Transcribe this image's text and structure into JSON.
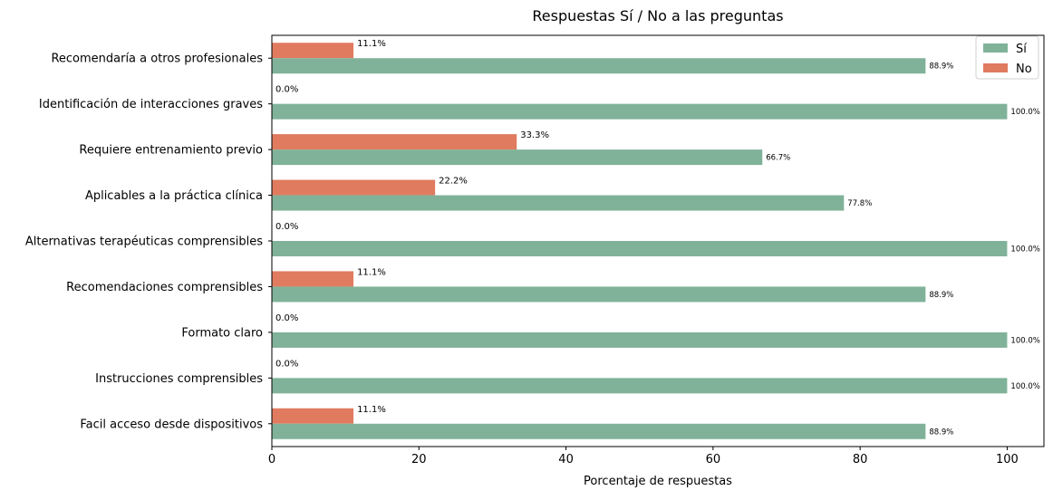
{
  "chart_data": {
    "type": "bar",
    "orientation": "horizontal",
    "title": "Respuestas Sí / No a las preguntas",
    "xlabel": "Porcentaje de respuestas",
    "ylabel": "",
    "xlim": [
      0,
      105
    ],
    "xticks": [
      0,
      20,
      40,
      60,
      80,
      100
    ],
    "grid": false,
    "legend_position": "top-right",
    "categories": [
      "Recomendaría a otros profesionales",
      "Identificación de interacciones graves",
      "Requiere entrenamiento previo",
      "Aplicables a la práctica clínica",
      "Alternativas terapéuticas comprensibles",
      "Recomendaciones comprensibles",
      "Formato claro",
      "Instrucciones comprensibles",
      "Facil acceso desde dispositivos"
    ],
    "series": [
      {
        "name": "Sí",
        "color": "#80b299",
        "values": [
          88.9,
          100.0,
          66.7,
          77.8,
          100.0,
          88.9,
          100.0,
          100.0,
          88.9
        ],
        "labels": [
          "88.9%",
          "100.0%",
          "66.7%",
          "77.8%",
          "100.0%",
          "88.9%",
          "100.0%",
          "100.0%",
          "88.9%"
        ]
      },
      {
        "name": "No",
        "color": "#e07b5f",
        "values": [
          11.1,
          0.0,
          33.3,
          22.2,
          0.0,
          11.1,
          0.0,
          0.0,
          11.1
        ],
        "labels": [
          "11.1%",
          "0.0%",
          "33.3%",
          "22.2%",
          "0.0%",
          "11.1%",
          "0.0%",
          "0.0%",
          "11.1%"
        ]
      }
    ]
  }
}
